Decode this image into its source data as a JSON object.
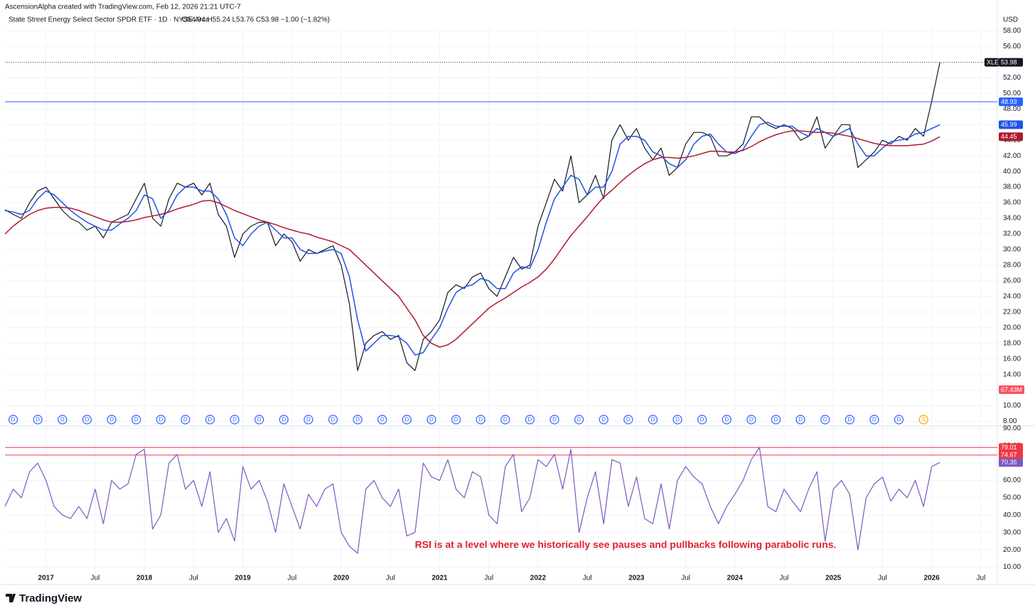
{
  "header": {
    "credit": "AscensionAlpha created with TradingView.com, Feb 12, 2026 21:21 UTC-7",
    "symbol_line": "State Street Energy Select Sector SPDR ETF · 1D · NYSE Arca",
    "ohlc": "O54.94 H55.24 L53.76 C53.98 −1.00 (−1.82%)"
  },
  "brand": "TradingView",
  "chart_data": [
    {
      "type": "line",
      "currency": "USD",
      "ticker": "XLE",
      "grid": true,
      "x": [
        "2016-08",
        "2016-09",
        "2016-10",
        "2016-11",
        "2016-12",
        "2017-01",
        "2017-02",
        "2017-03",
        "2017-04",
        "2017-05",
        "2017-06",
        "2017-07",
        "2017-08",
        "2017-09",
        "2017-10",
        "2017-11",
        "2017-12",
        "2018-01",
        "2018-02",
        "2018-03",
        "2018-04",
        "2018-05",
        "2018-06",
        "2018-07",
        "2018-08",
        "2018-09",
        "2018-10",
        "2018-11",
        "2018-12",
        "2019-01",
        "2019-02",
        "2019-03",
        "2019-04",
        "2019-05",
        "2019-06",
        "2019-07",
        "2019-08",
        "2019-09",
        "2019-10",
        "2019-11",
        "2019-12",
        "2020-01",
        "2020-02",
        "2020-03",
        "2020-04",
        "2020-05",
        "2020-06",
        "2020-07",
        "2020-08",
        "2020-09",
        "2020-10",
        "2020-11",
        "2020-12",
        "2021-01",
        "2021-02",
        "2021-03",
        "2021-04",
        "2021-05",
        "2021-06",
        "2021-07",
        "2021-08",
        "2021-09",
        "2021-10",
        "2021-11",
        "2021-12",
        "2022-01",
        "2022-02",
        "2022-03",
        "2022-04",
        "2022-05",
        "2022-06",
        "2022-07",
        "2022-08",
        "2022-09",
        "2022-10",
        "2022-11",
        "2022-12",
        "2023-01",
        "2023-02",
        "2023-03",
        "2023-04",
        "2023-05",
        "2023-06",
        "2023-07",
        "2023-08",
        "2023-09",
        "2023-10",
        "2023-11",
        "2023-12",
        "2024-01",
        "2024-02",
        "2024-03",
        "2024-04",
        "2024-05",
        "2024-06",
        "2024-07",
        "2024-08",
        "2024-09",
        "2024-10",
        "2024-11",
        "2024-12",
        "2025-01",
        "2025-02",
        "2025-03",
        "2025-04",
        "2025-05",
        "2025-06",
        "2025-07",
        "2025-08",
        "2025-09",
        "2025-10",
        "2025-11",
        "2025-12",
        "2026-01",
        "2026-02"
      ],
      "xlim": [
        "2016-08",
        "2026-09"
      ],
      "xticks": [
        {
          "value": "2017-01",
          "label": "2017"
        },
        {
          "value": "2017-07",
          "label": "Jul"
        },
        {
          "value": "2018-01",
          "label": "2018"
        },
        {
          "value": "2018-07",
          "label": "Jul"
        },
        {
          "value": "2019-01",
          "label": "2019"
        },
        {
          "value": "2019-07",
          "label": "Jul"
        },
        {
          "value": "2020-01",
          "label": "2020"
        },
        {
          "value": "2020-07",
          "label": "Jul"
        },
        {
          "value": "2021-01",
          "label": "2021"
        },
        {
          "value": "2021-07",
          "label": "Jul"
        },
        {
          "value": "2022-01",
          "label": "2022"
        },
        {
          "value": "2022-07",
          "label": "Jul"
        },
        {
          "value": "2023-01",
          "label": "2023"
        },
        {
          "value": "2023-07",
          "label": "Jul"
        },
        {
          "value": "2024-01",
          "label": "2024"
        },
        {
          "value": "2024-07",
          "label": "Jul"
        },
        {
          "value": "2025-01",
          "label": "2025"
        },
        {
          "value": "2025-07",
          "label": "Jul"
        },
        {
          "value": "2026-01",
          "label": "2026"
        },
        {
          "value": "2026-07",
          "label": "Jul"
        }
      ],
      "ylim": [
        7.5,
        58.5
      ],
      "yticks": [
        {
          "value": 8,
          "label": "8.00"
        },
        {
          "value": 10,
          "label": "10.00"
        },
        {
          "value": 12,
          "label": "12.00"
        },
        {
          "value": 14,
          "label": "14.00"
        },
        {
          "value": 16,
          "label": "16.00"
        },
        {
          "value": 18,
          "label": "18.00"
        },
        {
          "value": 20,
          "label": "20.00"
        },
        {
          "value": 22,
          "label": "22.00"
        },
        {
          "value": 24,
          "label": "24.00"
        },
        {
          "value": 26,
          "label": "26.00"
        },
        {
          "value": 28,
          "label": "28.00"
        },
        {
          "value": 30,
          "label": "30.00"
        },
        {
          "value": 32,
          "label": "32.00"
        },
        {
          "value": 34,
          "label": "34.00"
        },
        {
          "value": 36,
          "label": "36.00"
        },
        {
          "value": 38,
          "label": "38.00"
        },
        {
          "value": 40,
          "label": "40.00"
        },
        {
          "value": 42,
          "label": "42.00"
        },
        {
          "value": 44,
          "label": "44.00"
        },
        {
          "value": 46,
          "label": "46.00"
        },
        {
          "value": 48,
          "label": "48.00"
        },
        {
          "value": 50,
          "label": "50.00"
        },
        {
          "value": 52,
          "label": "52.00"
        },
        {
          "value": 54,
          "label": "54.00"
        },
        {
          "value": 56,
          "label": "56.00"
        },
        {
          "value": 58,
          "label": "58.00"
        }
      ],
      "series": [
        {
          "name": "XLE",
          "color": "#131722",
          "values": [
            35.1,
            34.5,
            34,
            36,
            37.5,
            38,
            36.5,
            35,
            34,
            33.5,
            32.5,
            33,
            31.5,
            33.5,
            34,
            34.5,
            36.5,
            38.5,
            34,
            33,
            36.5,
            38.5,
            38,
            38.5,
            37,
            38.5,
            34.5,
            33,
            29,
            32,
            33,
            33.5,
            33.5,
            30.5,
            32,
            31,
            28.5,
            30,
            29.5,
            30,
            30.5,
            28,
            23,
            14.5,
            18,
            19,
            19.5,
            18.5,
            19,
            15.5,
            14.5,
            18.5,
            19.5,
            21,
            24.5,
            25.5,
            25,
            26.5,
            27,
            25,
            24,
            26.5,
            29,
            27.5,
            28,
            33,
            36,
            39,
            37.5,
            42,
            36,
            37,
            39.5,
            36.5,
            44,
            46,
            44,
            45.5,
            43,
            41.5,
            43,
            39.5,
            40.5,
            43.5,
            45,
            45,
            44.5,
            42,
            42,
            42.5,
            43.5,
            47,
            47,
            46,
            45.5,
            46,
            45.5,
            44,
            44.5,
            47,
            43,
            44.5,
            46,
            46,
            40.5,
            41.5,
            42.5,
            44,
            43.5,
            44.5,
            44,
            45.5,
            44.5,
            49,
            53.98
          ]
        },
        {
          "color": "#1e53e5",
          "values": [
            35,
            34.8,
            34.5,
            35,
            36.5,
            37.5,
            37,
            36,
            35,
            34.2,
            33.5,
            33,
            32.5,
            32.5,
            33.3,
            34,
            35,
            37,
            36.5,
            34,
            35,
            37,
            38,
            38,
            37.5,
            37.5,
            36.5,
            34.5,
            31.5,
            30.5,
            32,
            33,
            33.5,
            32.5,
            31.5,
            31.5,
            30,
            29.5,
            29.5,
            29.8,
            30,
            29.5,
            26.5,
            21,
            17,
            18,
            19,
            19,
            18.8,
            18,
            16.5,
            16.8,
            18.5,
            20,
            22.5,
            24.5,
            25.2,
            25.5,
            26.3,
            26,
            25,
            25,
            27,
            27.8,
            27.6,
            30,
            33.5,
            36.5,
            38,
            39.5,
            39,
            37,
            38,
            38,
            40,
            43.5,
            44.5,
            44.5,
            44,
            42.5,
            42,
            41,
            40.5,
            41.5,
            43.5,
            44.5,
            44.8,
            43.5,
            42.5,
            42.3,
            42.8,
            44.5,
            46,
            46.3,
            45.8,
            45.8,
            45.8,
            45,
            44.5,
            45.5,
            45,
            44.5,
            45,
            45.5,
            43.5,
            42,
            42,
            43,
            43.8,
            44,
            44.2,
            44.8,
            45,
            45.5,
            45.99
          ]
        },
        {
          "color": "#b2182b",
          "values": [
            32,
            33,
            33.8,
            34.5,
            35,
            35.3,
            35.4,
            35.4,
            35.3,
            35,
            34.6,
            34.2,
            33.8,
            33.5,
            33.5,
            33.6,
            33.8,
            34.1,
            34.3,
            34.5,
            34.8,
            35.2,
            35.5,
            35.8,
            36.2,
            36.3,
            36,
            35.5,
            35,
            34.6,
            34.2,
            33.8,
            33.5,
            33.2,
            32.8,
            32.5,
            32.2,
            32,
            31.6,
            31.3,
            31,
            30.5,
            30,
            29,
            28,
            27,
            26,
            25,
            24,
            22.5,
            21,
            19,
            18,
            17.5,
            17.8,
            18.5,
            19.5,
            20.5,
            21.5,
            22.5,
            23.2,
            23.8,
            24.5,
            25.2,
            25.8,
            26.5,
            27.5,
            28.8,
            30.3,
            31.8,
            33,
            34.2,
            35.5,
            36.7,
            37.6,
            38.6,
            39.5,
            40.3,
            41,
            41.5,
            41.8,
            41.8,
            41.7,
            41.8,
            42,
            42.3,
            42.6,
            42.6,
            42.5,
            42.5,
            42.7,
            43.2,
            43.8,
            44.3,
            44.7,
            45,
            45.2,
            45.2,
            45.1,
            45,
            45,
            44.9,
            44.7,
            44.5,
            44.2,
            43.9,
            43.6,
            43.4,
            43.3,
            43.3,
            43.3,
            43.4,
            43.5,
            43.9,
            44.45
          ]
        }
      ],
      "hlines": [
        {
          "value": 48.93,
          "color": "#2962ff"
        }
      ],
      "volume_label": "67.43M",
      "dividends": {
        "label": "D",
        "color": "#2962ff",
        "x": [
          "2016-09",
          "2016-12",
          "2017-03",
          "2017-06",
          "2017-09",
          "2017-12",
          "2018-03",
          "2018-06",
          "2018-09",
          "2018-12",
          "2019-03",
          "2019-06",
          "2019-09",
          "2019-12",
          "2020-03",
          "2020-06",
          "2020-09",
          "2020-12",
          "2021-03",
          "2021-06",
          "2021-09",
          "2021-12",
          "2022-03",
          "2022-06",
          "2022-09",
          "2022-12",
          "2023-03",
          "2023-06",
          "2023-09",
          "2023-12",
          "2024-03",
          "2024-06",
          "2024-09",
          "2024-12",
          "2025-03",
          "2025-06",
          "2025-09"
        ]
      },
      "split": {
        "label": "S",
        "color": "#f7a600",
        "x": "2025-12"
      }
    },
    {
      "type": "line",
      "grid": true,
      "ylim": [
        2,
        91
      ],
      "yticks": [
        {
          "value": 10,
          "label": "10.00"
        },
        {
          "value": 20,
          "label": "20.00"
        },
        {
          "value": 30,
          "label": "30.00"
        },
        {
          "value": 40,
          "label": "40.00"
        },
        {
          "value": 50,
          "label": "50.00"
        },
        {
          "value": 60,
          "label": "60.00"
        },
        {
          "value": 70,
          "label": "70.00"
        },
        {
          "value": 80,
          "label": "80.00"
        },
        {
          "value": 90,
          "label": "90.00"
        }
      ],
      "series": [
        {
          "color": "#7e57c2",
          "values": [
            45,
            55,
            50,
            65,
            70,
            60,
            45,
            40,
            38,
            45,
            38,
            55,
            35,
            60,
            55,
            58,
            75,
            78,
            32,
            40,
            70,
            75,
            55,
            60,
            45,
            65,
            30,
            38,
            25,
            68,
            55,
            60,
            48,
            30,
            58,
            45,
            32,
            52,
            45,
            55,
            58,
            30,
            22,
            18,
            55,
            60,
            50,
            45,
            55,
            28,
            30,
            70,
            62,
            60,
            72,
            55,
            50,
            65,
            62,
            40,
            35,
            68,
            75,
            42,
            50,
            72,
            68,
            75,
            55,
            78,
            30,
            50,
            65,
            35,
            72,
            70,
            45,
            62,
            38,
            35,
            58,
            32,
            60,
            68,
            62,
            58,
            45,
            35,
            45,
            52,
            60,
            72,
            79,
            45,
            42,
            55,
            48,
            42,
            55,
            65,
            25,
            55,
            60,
            52,
            20,
            50,
            58,
            62,
            48,
            55,
            50,
            60,
            45,
            68,
            70.35
          ]
        }
      ],
      "hlines": [
        {
          "value": 79.01,
          "color": "#f23645"
        },
        {
          "value": 74.67,
          "color": "#f23645"
        }
      ],
      "annotation": "RSI is at a level where we historically see pauses and pullbacks following parabolic runs."
    }
  ]
}
